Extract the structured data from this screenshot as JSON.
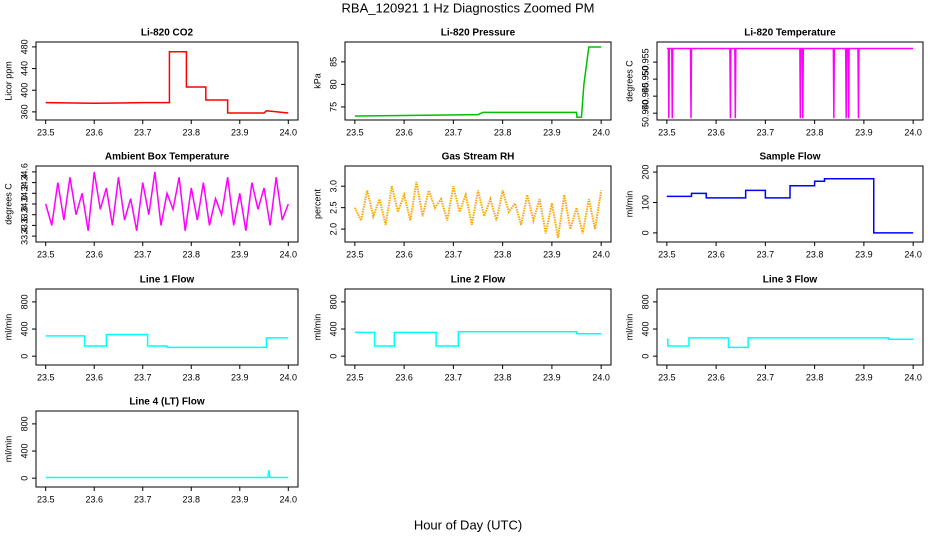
{
  "title": "RBA_120921  1 Hz Diagnostics Zoomed PM",
  "xlabel": "Hour of Day (UTC)",
  "chart_data": [
    {
      "type": "line",
      "title": "Li-820 CO2",
      "ylabel": "Licor ppm",
      "color": "#ff0000",
      "x": [
        23.5,
        23.6,
        23.7,
        23.755,
        23.755,
        23.79,
        23.79,
        23.83,
        23.83,
        23.875,
        23.875,
        23.95,
        23.955,
        24.0
      ],
      "values": [
        377,
        376,
        377,
        377,
        471,
        471,
        406,
        406,
        382,
        382,
        358,
        358,
        362,
        358
      ],
      "xlim": [
        23.48,
        24.02
      ],
      "ylim": [
        345,
        489
      ],
      "xticks": [
        23.5,
        23.6,
        23.7,
        23.8,
        23.9,
        {
          "value": 24,
          "label": "24.0"
        }
      ],
      "yticks": [
        360,
        400,
        440,
        480
      ]
    },
    {
      "type": "line",
      "title": "Li-820 Pressure",
      "ylabel": "kPa",
      "color": "#00c000",
      "x": [
        23.5,
        23.6,
        23.75,
        23.76,
        23.95,
        23.951,
        23.96,
        23.965,
        23.975,
        24.0
      ],
      "values": [
        73,
        73.1,
        73.3,
        73.8,
        73.8,
        72.7,
        72.7,
        80,
        88.3,
        88.3
      ],
      "xlim": [
        23.48,
        24.02
      ],
      "ylim": [
        72.1,
        89.4
      ],
      "xticks": [
        23.5,
        23.6,
        23.7,
        23.8,
        23.9,
        {
          "value": 24,
          "label": "24.0"
        }
      ],
      "yticks": [
        75,
        80,
        85
      ]
    },
    {
      "type": "line",
      "title": "Li-820 Temperature",
      "ylabel": "degrees C",
      "color": "#ff00ff",
      "x": [
        23.5,
        23.503,
        23.504,
        23.505,
        23.51,
        23.511,
        23.512,
        23.548,
        23.549,
        23.55,
        23.628,
        23.629,
        23.63,
        23.638,
        23.639,
        23.64,
        23.77,
        23.771,
        23.772,
        23.775,
        23.776,
        23.777,
        23.838,
        23.839,
        23.84,
        23.863,
        23.864,
        23.865,
        23.868,
        23.869,
        23.87,
        23.888,
        23.889,
        23.89,
        24.0
      ],
      "values": [
        50.959,
        50.959,
        50.9385,
        50.959,
        50.959,
        50.9385,
        50.959,
        50.959,
        50.9385,
        50.959,
        50.959,
        50.9385,
        50.959,
        50.959,
        50.9385,
        50.959,
        50.959,
        50.9385,
        50.959,
        50.959,
        50.9385,
        50.959,
        50.959,
        50.9385,
        50.959,
        50.959,
        50.9385,
        50.959,
        50.959,
        50.9385,
        50.959,
        50.959,
        50.9385,
        50.959,
        50.959
      ],
      "xlim": [
        23.48,
        24.02
      ],
      "ylim": [
        50.938,
        50.9609
      ],
      "xticks": [
        23.5,
        23.6,
        23.7,
        23.8,
        23.9,
        {
          "value": 24,
          "label": "24.0"
        }
      ],
      "yticks": [
        {
          "value": 50.94,
          "label": "50.940"
        },
        50.945,
        {
          "value": 50.95,
          "label": "50.950"
        },
        50.955
      ]
    },
    {
      "type": "line",
      "title": "Ambient Box Temperature",
      "ylabel": "degrees C",
      "color": "#ff00ff",
      "x": [
        23.5,
        23.5125,
        23.525,
        23.5375,
        23.55,
        23.5625,
        23.575,
        23.5875,
        23.6,
        23.6125,
        23.625,
        23.6375,
        23.65,
        23.6625,
        23.675,
        23.6875,
        23.7,
        23.7125,
        23.725,
        23.7375,
        23.75,
        23.7625,
        23.775,
        23.7875,
        23.8,
        23.8125,
        23.825,
        23.8375,
        23.85,
        23.8625,
        23.875,
        23.8875,
        23.9,
        23.9125,
        23.925,
        23.9375,
        23.95,
        23.9625,
        23.975,
        23.9875,
        24.0
      ],
      "values": [
        34.0,
        33.6,
        34.4,
        33.7,
        34.5,
        33.8,
        34.2,
        33.5,
        34.6,
        33.9,
        34.3,
        33.6,
        34.5,
        33.7,
        34.1,
        33.5,
        34.4,
        33.8,
        34.6,
        33.6,
        34.2,
        33.9,
        34.5,
        33.5,
        34.3,
        33.7,
        34.4,
        33.6,
        34.1,
        33.8,
        34.5,
        33.6,
        34.2,
        33.5,
        34.4,
        33.9,
        34.3,
        33.6,
        34.5,
        33.7,
        34.0
      ],
      "xlim": [
        23.48,
        24.02
      ],
      "ylim": [
        33.29,
        34.71
      ],
      "xticks": [
        23.5,
        23.6,
        23.7,
        23.8,
        23.9,
        {
          "value": 24,
          "label": "24.0"
        }
      ],
      "yticks": [
        33.4,
        33.6,
        33.8,
        {
          "value": 34,
          "label": "34.0"
        },
        34.2,
        34.4,
        34.6
      ]
    },
    {
      "type": "line",
      "title": "Gas Stream RH",
      "ylabel": "percent",
      "color": "#ffa500",
      "style": "dotted",
      "x": [
        23.5,
        23.5125,
        23.525,
        23.5375,
        23.55,
        23.5625,
        23.575,
        23.5875,
        23.6,
        23.6125,
        23.625,
        23.6375,
        23.65,
        23.6625,
        23.675,
        23.6875,
        23.7,
        23.7125,
        23.725,
        23.7375,
        23.75,
        23.7625,
        23.775,
        23.7875,
        23.8,
        23.8125,
        23.825,
        23.8375,
        23.85,
        23.8625,
        23.875,
        23.8875,
        23.9,
        23.9125,
        23.925,
        23.9375,
        23.95,
        23.9625,
        23.975,
        23.9875,
        24.0
      ],
      "values": [
        2.5,
        2.2,
        2.9,
        2.3,
        2.7,
        2.1,
        3.0,
        2.4,
        2.8,
        2.2,
        3.1,
        2.3,
        2.9,
        2.5,
        2.7,
        2.2,
        3.0,
        2.4,
        2.8,
        2.1,
        2.9,
        2.3,
        2.7,
        2.2,
        2.9,
        2.4,
        2.6,
        2.1,
        2.8,
        2.2,
        2.7,
        1.9,
        2.6,
        1.8,
        2.8,
        2.0,
        2.5,
        1.9,
        2.7,
        2.0,
        2.9
      ],
      "xlim": [
        23.48,
        24.02
      ],
      "ylim": [
        1.7,
        3.47
      ],
      "xticks": [
        23.5,
        23.6,
        23.7,
        23.8,
        23.9,
        {
          "value": 24,
          "label": "24.0"
        }
      ],
      "yticks": [
        {
          "value": 2,
          "label": "2.0"
        },
        2.5,
        {
          "value": 3,
          "label": "3.0"
        }
      ]
    },
    {
      "type": "line",
      "title": "Sample Flow",
      "ylabel": "ml/min",
      "color": "#0000ff",
      "x": [
        23.5,
        23.55,
        23.55,
        23.58,
        23.58,
        23.66,
        23.66,
        23.7,
        23.7,
        23.75,
        23.75,
        23.8,
        23.8,
        23.82,
        23.82,
        23.92,
        23.92,
        24.0
      ],
      "values": [
        120,
        120,
        130,
        130,
        115,
        115,
        140,
        140,
        115,
        115,
        155,
        155,
        170,
        170,
        178,
        178,
        0,
        0
      ],
      "xlim": [
        23.48,
        24.02
      ],
      "ylim": [
        -30,
        220
      ],
      "xticks": [
        23.5,
        23.6,
        23.7,
        23.8,
        23.9,
        {
          "value": 24,
          "label": "24.0"
        }
      ],
      "yticks": [
        0,
        100,
        200
      ]
    },
    {
      "type": "line",
      "title": "Line 1 Flow",
      "ylabel": "ml/min",
      "color": "#00ffff",
      "x": [
        23.5,
        23.58,
        23.58,
        23.625,
        23.625,
        23.71,
        23.71,
        23.75,
        23.75,
        23.955,
        23.955,
        24.0
      ],
      "values": [
        300,
        300,
        150,
        150,
        320,
        320,
        150,
        150,
        130,
        130,
        270,
        270
      ],
      "xlim": [
        23.48,
        24.02
      ],
      "ylim": [
        -130,
        990
      ],
      "xticks": [
        23.5,
        23.6,
        23.7,
        23.8,
        23.9,
        {
          "value": 24,
          "label": "24.0"
        }
      ],
      "yticks": [
        0,
        400,
        800
      ]
    },
    {
      "type": "line",
      "title": "Line 2 Flow",
      "ylabel": "ml/min",
      "color": "#00ffff",
      "x": [
        23.5,
        23.54,
        23.54,
        23.58,
        23.58,
        23.665,
        23.665,
        23.71,
        23.71,
        23.95,
        23.95,
        24.0
      ],
      "values": [
        350,
        350,
        150,
        150,
        350,
        350,
        150,
        150,
        360,
        360,
        330,
        330
      ],
      "xlim": [
        23.48,
        24.02
      ],
      "ylim": [
        -130,
        990
      ],
      "xticks": [
        23.5,
        23.6,
        23.7,
        23.8,
        23.9,
        {
          "value": 24,
          "label": "24.0"
        }
      ],
      "yticks": [
        0,
        400,
        800
      ]
    },
    {
      "type": "line",
      "title": "Line 3 Flow",
      "ylabel": "ml/min",
      "color": "#00ffff",
      "x": [
        23.5,
        23.502,
        23.502,
        23.545,
        23.545,
        23.625,
        23.625,
        23.665,
        23.665,
        23.95,
        23.95,
        24.0
      ],
      "values": [
        250,
        250,
        150,
        150,
        270,
        270,
        130,
        130,
        270,
        270,
        250,
        250
      ],
      "xlim": [
        23.48,
        24.02
      ],
      "ylim": [
        -130,
        990
      ],
      "xticks": [
        23.5,
        23.6,
        23.7,
        23.8,
        23.9,
        {
          "value": 24,
          "label": "24.0"
        }
      ],
      "yticks": [
        0,
        400,
        800
      ]
    },
    {
      "type": "line",
      "title": "Line 4 (LT) Flow",
      "ylabel": "ml/min",
      "color": "#00ffff",
      "x": [
        23.5,
        23.958,
        23.96,
        23.962,
        24.0
      ],
      "values": [
        10,
        10,
        120,
        10,
        10
      ],
      "xlim": [
        23.48,
        24.02
      ],
      "ylim": [
        -130,
        990
      ],
      "xticks": [
        23.5,
        23.6,
        23.7,
        23.8,
        23.9,
        {
          "value": 24,
          "label": "24.0"
        }
      ],
      "yticks": [
        0,
        400,
        800
      ]
    }
  ]
}
